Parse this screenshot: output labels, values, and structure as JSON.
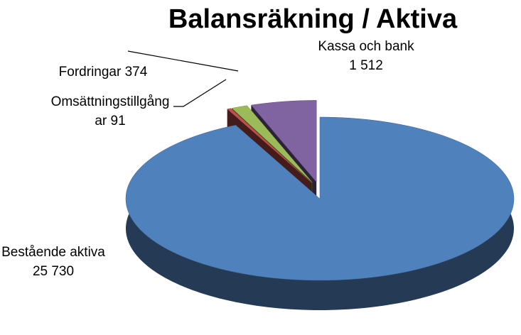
{
  "chart_data": {
    "type": "pie3d",
    "title": "Balansräkning / Aktiva",
    "categories": [
      "Bestående aktiva",
      "Omsättningstillgångar",
      "Fordringar",
      "Kassa och bank"
    ],
    "values": [
      25730,
      91,
      374,
      1512
    ],
    "value_labels": [
      "25 730",
      "91",
      "374",
      "1 512"
    ],
    "colors": [
      "#4f81bd",
      "#c0504d",
      "#9bbb59",
      "#8064a2"
    ]
  }
}
